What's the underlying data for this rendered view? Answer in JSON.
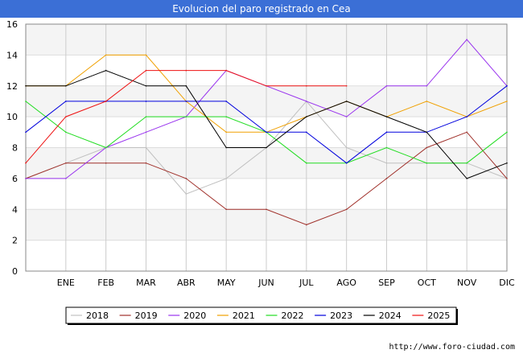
{
  "chart_data": {
    "type": "line",
    "title": "Evolucion del paro registrado en Cea",
    "categories": [
      "",
      "ENE",
      "FEB",
      "MAR",
      "ABR",
      "MAY",
      "JUN",
      "JUL",
      "AGO",
      "SEP",
      "OCT",
      "NOV",
      "DIC"
    ],
    "ylim": [
      0,
      16
    ],
    "yticks": [
      0,
      2,
      4,
      6,
      8,
      10,
      12,
      14,
      16
    ],
    "xlabel": "",
    "ylabel": "",
    "grid": true,
    "legend_position": "bottom",
    "series": [
      {
        "name": "2018",
        "color": "#c0c0c0",
        "values": [
          6,
          7,
          8,
          8,
          5,
          6,
          8,
          11,
          8,
          7,
          7,
          7,
          6
        ]
      },
      {
        "name": "2019",
        "color": "#a0302a",
        "values": [
          6,
          7,
          7,
          7,
          6,
          4,
          4,
          3,
          4,
          6,
          8,
          9,
          6
        ]
      },
      {
        "name": "2020",
        "color": "#9933ee",
        "values": [
          6,
          6,
          8,
          9,
          10,
          13,
          12,
          11,
          10,
          12,
          12,
          15,
          12
        ]
      },
      {
        "name": "2021",
        "color": "#f0a000",
        "values": [
          12,
          12,
          14,
          14,
          11,
          9,
          9,
          10,
          11,
          10,
          11,
          10,
          11
        ]
      },
      {
        "name": "2022",
        "color": "#22dd22",
        "values": [
          11,
          9,
          8,
          10,
          10,
          10,
          9,
          7,
          7,
          8,
          7,
          7,
          9
        ]
      },
      {
        "name": "2023",
        "color": "#0000dd",
        "values": [
          9,
          11,
          11,
          11,
          11,
          11,
          9,
          9,
          7,
          9,
          9,
          10,
          12
        ]
      },
      {
        "name": "2024",
        "color": "#000000",
        "values": [
          12,
          12,
          13,
          12,
          12,
          8,
          8,
          10,
          11,
          10,
          9,
          6,
          7
        ]
      },
      {
        "name": "2025",
        "color": "#ee1111",
        "values": [
          7,
          10,
          11,
          13,
          13,
          13,
          12,
          12,
          12,
          null,
          null,
          null,
          null
        ]
      }
    ]
  },
  "footer": {
    "source": "http://www.foro-ciudad.com"
  }
}
